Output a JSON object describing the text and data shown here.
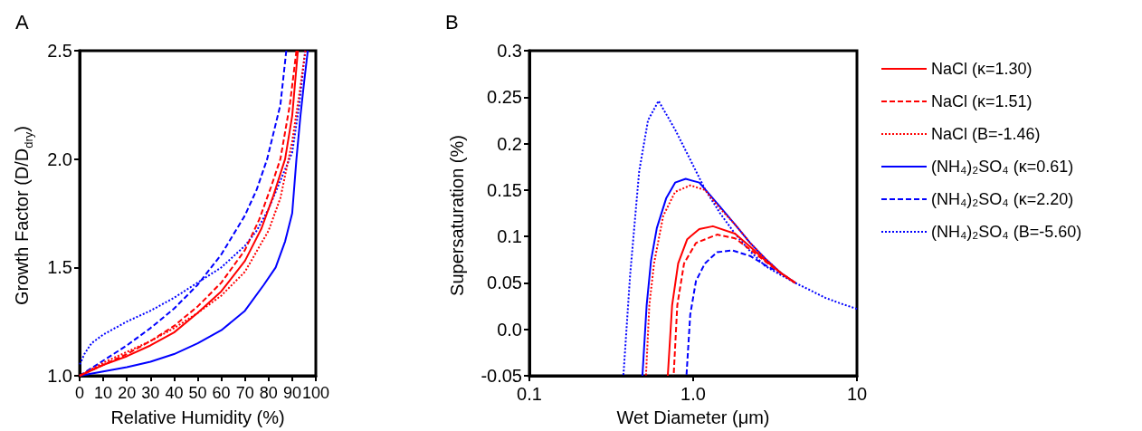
{
  "chart_data": [
    {
      "type": "line",
      "title": "A",
      "xlabel": "Relative Humidity (%)",
      "ylabel": "Growth Factor (D/D$_{dry}$)",
      "xlim": [
        0,
        100
      ],
      "xticks": [
        0,
        10,
        20,
        30,
        40,
        50,
        60,
        70,
        80,
        90,
        100
      ],
      "ylim": [
        1,
        2.5
      ],
      "yticks": [
        {
          "value": 1,
          "label": "1.0"
        },
        {
          "value": 1.5,
          "label": "1.5"
        },
        {
          "value": 2,
          "label": "2.0"
        },
        {
          "value": 2.5,
          "label": "2.5"
        }
      ],
      "grid": false,
      "legend": false,
      "marker": "none",
      "series": [
        {
          "color": "#ff0000",
          "line_style": "solid",
          "x": [
            0,
            10,
            20,
            30,
            40,
            50,
            60,
            70,
            77,
            82,
            87,
            90,
            92.4
          ],
          "values": [
            1,
            1.05,
            1.09,
            1.14,
            1.2,
            1.29,
            1.39,
            1.53,
            1.68,
            1.83,
            2.0,
            2.2,
            2.5
          ]
        },
        {
          "color": "#ff0000",
          "line_style": "dashed",
          "x": [
            0,
            10,
            20,
            30,
            40,
            50,
            60,
            70,
            76,
            81,
            85,
            89,
            91.8
          ],
          "values": [
            1,
            1.05,
            1.1,
            1.16,
            1.23,
            1.32,
            1.43,
            1.58,
            1.72,
            1.87,
            2.0,
            2.25,
            2.5
          ]
        },
        {
          "color": "#ff0000",
          "line_style": "dotted",
          "x": [
            0,
            10,
            20,
            30,
            40,
            50,
            60,
            70,
            80,
            85,
            90,
            93,
            95.6
          ],
          "values": [
            1,
            1.06,
            1.11,
            1.16,
            1.22,
            1.29,
            1.37,
            1.48,
            1.67,
            1.82,
            2.08,
            2.3,
            2.5
          ]
        },
        {
          "color": "#0000ff",
          "line_style": "solid",
          "x": [
            0,
            10,
            20,
            30,
            40,
            50,
            60,
            70,
            78,
            83,
            87,
            90,
            91.8,
            93.5,
            95,
            96.6
          ],
          "values": [
            1,
            1.02,
            1.04,
            1.065,
            1.1,
            1.15,
            1.21,
            1.3,
            1.42,
            1.5,
            1.62,
            1.75,
            2.0,
            2.2,
            2.35,
            2.5
          ]
        },
        {
          "color": "#0000ff",
          "line_style": "dashed",
          "x": [
            0,
            10,
            20,
            30,
            40,
            50,
            60,
            70,
            75,
            79.4,
            85,
            87.5
          ],
          "values": [
            1,
            1.07,
            1.14,
            1.22,
            1.31,
            1.42,
            1.56,
            1.74,
            1.86,
            2.0,
            2.25,
            2.5
          ]
        },
        {
          "color": "#0000ff",
          "line_style": "dotted",
          "x": [
            0,
            2,
            5,
            10,
            20,
            30,
            40,
            50,
            60,
            70,
            75,
            80,
            85,
            90,
            93,
            95.5
          ],
          "values": [
            1.05,
            1.1,
            1.15,
            1.19,
            1.25,
            1.3,
            1.36,
            1.43,
            1.5,
            1.6,
            1.67,
            1.77,
            1.9,
            2.03,
            2.25,
            2.5
          ]
        }
      ]
    },
    {
      "type": "line",
      "title": "B",
      "xlabel": "Wet Diameter (μm)",
      "ylabel": "Supersaturation (%)",
      "log": "x",
      "xlim": [
        0.1,
        10
      ],
      "xticks": [
        0.1,
        {
          "value": 1,
          "label": "1.0"
        },
        10
      ],
      "ylim": [
        -0.05,
        0.3
      ],
      "yticks": [
        -0.05,
        {
          "value": 0,
          "label": "0.0"
        },
        0.05,
        0.1,
        0.15,
        0.2,
        0.25,
        0.3
      ],
      "grid": false,
      "legend": "right",
      "marker": "none",
      "series": [
        {
          "name": "NaCl (κ=1.30)",
          "color": "#ff0000",
          "line_style": "solid",
          "x": [
            0.7,
            0.744,
            0.81,
            0.92,
            1.09,
            1.32,
            1.8,
            2.23,
            2.76,
            3.47,
            4.2
          ],
          "values": [
            -0.05,
            0.026,
            0.071,
            0.097,
            0.108,
            0.111,
            0.103,
            0.089,
            0.074,
            0.06,
            0.05
          ]
        },
        {
          "name": "NaCl (κ=1.51)",
          "color": "#ff0000",
          "line_style": "dashed",
          "x": [
            0.76,
            0.8,
            0.88,
            1.04,
            1.4,
            1.8,
            2.23,
            2.76,
            3.47,
            4.2
          ],
          "values": [
            -0.05,
            0.026,
            0.071,
            0.093,
            0.102,
            0.098,
            0.086,
            0.073,
            0.06,
            0.05
          ]
        },
        {
          "name": "NaCl (B=-1.46)",
          "color": "#ff0000",
          "line_style": "dotted",
          "x": [
            0.515,
            0.54,
            0.577,
            0.656,
            0.776,
            0.96,
            1.18,
            1.46,
            1.8,
            2.23,
            2.76,
            3.47,
            4.2
          ],
          "values": [
            -0.05,
            0.026,
            0.071,
            0.122,
            0.148,
            0.155,
            0.15,
            0.13,
            0.113,
            0.093,
            0.076,
            0.06,
            0.05
          ]
        },
        {
          "name": "(NH₄)₂SO₄ (κ=0.61)",
          "color": "#0000ff",
          "line_style": "solid",
          "x": [
            0.49,
            0.52,
            0.553,
            0.6,
            0.684,
            0.776,
            0.9,
            1.09,
            1.46,
            1.8,
            2.23,
            2.76,
            3.47,
            4.2
          ],
          "values": [
            -0.05,
            0.026,
            0.074,
            0.109,
            0.141,
            0.158,
            0.162,
            0.158,
            0.132,
            0.113,
            0.093,
            0.076,
            0.06,
            0.05
          ]
        },
        {
          "name": "(NH₄)₂SO₄ (κ=2.20)",
          "color": "#0000ff",
          "line_style": "dashed",
          "x": [
            0.91,
            0.96,
            1.04,
            1.18,
            1.4,
            1.73,
            2.23,
            2.76,
            3.47,
            4.2
          ],
          "values": [
            -0.05,
            0.016,
            0.052,
            0.071,
            0.083,
            0.085,
            0.079,
            0.069,
            0.06,
            0.05
          ]
        },
        {
          "name": "(NH₄)₂SO₄ (B=-5.60)",
          "color": "#0000ff",
          "line_style": "dotted",
          "x": [
            0.375,
            0.412,
            0.468,
            0.53,
            0.615,
            0.776,
            0.958,
            1.18,
            1.46,
            1.8,
            2.23,
            2.76,
            3.47,
            4.2,
            5.2,
            6.4,
            7.9,
            10
          ],
          "values": [
            -0.05,
            0.058,
            0.17,
            0.225,
            0.246,
            0.215,
            0.183,
            0.151,
            0.125,
            0.103,
            0.084,
            0.068,
            0.058,
            0.05,
            0.042,
            0.034,
            0.028,
            0.022
          ]
        }
      ]
    }
  ]
}
